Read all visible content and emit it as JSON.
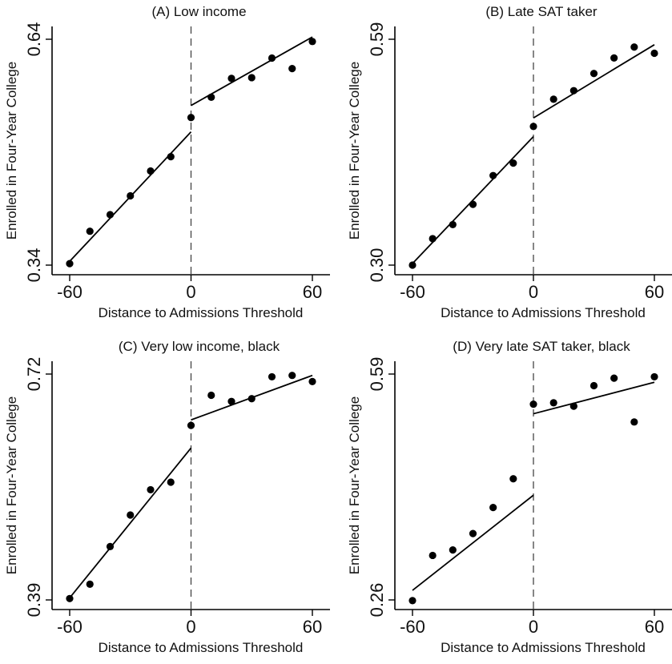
{
  "chart_data": [
    {
      "type": "scatter",
      "title": "(A) Low income",
      "xlabel": "Distance to Admissions Threshold",
      "ylabel": "Enrolled in Four-Year College",
      "xlim": [
        -60,
        60
      ],
      "ylim": [
        0.34,
        0.64
      ],
      "xticks": [
        "-60",
        "0",
        "60"
      ],
      "yticks": [
        "0.34",
        "0.64"
      ],
      "threshold": 0,
      "points": {
        "x": [
          -60,
          -50,
          -40,
          -30,
          -20,
          -10,
          0,
          10,
          20,
          30,
          40,
          50,
          60
        ],
        "y": [
          0.342,
          0.385,
          0.407,
          0.432,
          0.465,
          0.484,
          0.536,
          0.563,
          0.588,
          0.589,
          0.615,
          0.601,
          0.637
        ]
      },
      "fit_left": {
        "x": [
          -60,
          0
        ],
        "y": [
          0.345,
          0.517
        ]
      },
      "fit_right": {
        "x": [
          0,
          60
        ],
        "y": [
          0.552,
          0.643
        ]
      }
    },
    {
      "type": "scatter",
      "title": "(B) Late SAT taker",
      "xlabel": "Distance to Admissions Threshold",
      "ylabel": "Enrolled in Four-Year College",
      "xlim": [
        -60,
        60
      ],
      "ylim": [
        0.3,
        0.59
      ],
      "xticks": [
        "-60",
        "0",
        "60"
      ],
      "yticks": [
        "0.30",
        "0.59"
      ],
      "threshold": 0,
      "points": {
        "x": [
          -60,
          -50,
          -40,
          -30,
          -20,
          -10,
          0,
          10,
          20,
          30,
          40,
          50,
          60
        ],
        "y": [
          0.3,
          0.334,
          0.352,
          0.378,
          0.415,
          0.431,
          0.478,
          0.513,
          0.524,
          0.546,
          0.566,
          0.58,
          0.572
        ]
      },
      "fit_left": {
        "x": [
          -60,
          0
        ],
        "y": [
          0.302,
          0.465
        ]
      },
      "fit_right": {
        "x": [
          0,
          60
        ],
        "y": [
          0.489,
          0.583
        ]
      }
    },
    {
      "type": "scatter",
      "title": "(C) Very low income, black",
      "xlabel": "Distance to Admissions Threshold",
      "ylabel": "Enrolled in Four-Year College",
      "xlim": [
        -60,
        60
      ],
      "ylim": [
        0.39,
        0.72
      ],
      "xticks": [
        "-60",
        "0",
        "60"
      ],
      "yticks": [
        "0.39",
        "0.72"
      ],
      "threshold": 0,
      "points": {
        "x": [
          -60,
          -50,
          -40,
          -30,
          -20,
          -10,
          0,
          10,
          20,
          30,
          40,
          50,
          60
        ],
        "y": [
          0.392,
          0.413,
          0.468,
          0.514,
          0.551,
          0.562,
          0.645,
          0.689,
          0.68,
          0.684,
          0.716,
          0.718,
          0.709
        ]
      },
      "fit_left": {
        "x": [
          -60,
          0
        ],
        "y": [
          0.393,
          0.612
        ]
      },
      "fit_right": {
        "x": [
          0,
          60
        ],
        "y": [
          0.653,
          0.718
        ]
      }
    },
    {
      "type": "scatter",
      "title": "(D) Very late SAT taker, black",
      "xlabel": "Distance to Admissions Threshold",
      "ylabel": "Enrolled in Four-Year College",
      "xlim": [
        -60,
        60
      ],
      "ylim": [
        0.26,
        0.59
      ],
      "xticks": [
        "-60",
        "0",
        "60"
      ],
      "yticks": [
        "0.26",
        "0.59"
      ],
      "threshold": 0,
      "points": {
        "x": [
          -60,
          -50,
          -40,
          -30,
          -20,
          -10,
          0,
          10,
          20,
          30,
          40,
          50,
          60
        ],
        "y": [
          0.259,
          0.325,
          0.333,
          0.357,
          0.395,
          0.437,
          0.546,
          0.548,
          0.543,
          0.573,
          0.584,
          0.52,
          0.586
        ]
      },
      "fit_left": {
        "x": [
          -60,
          0
        ],
        "y": [
          0.274,
          0.413
        ]
      },
      "fit_right": {
        "x": [
          0,
          60
        ],
        "y": [
          0.532,
          0.578
        ]
      }
    }
  ]
}
